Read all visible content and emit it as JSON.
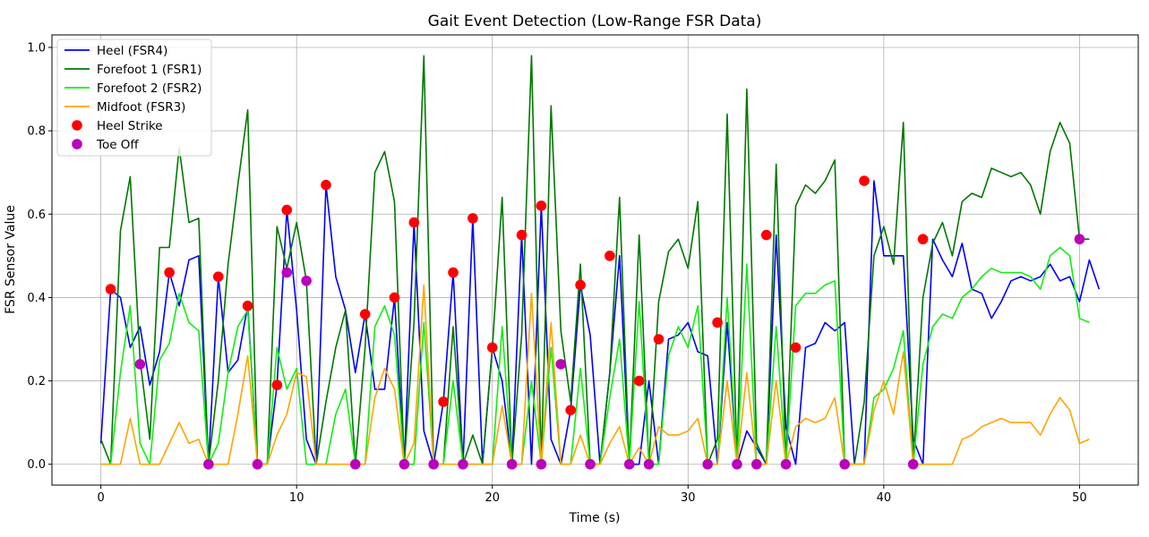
{
  "chart_data": {
    "type": "line",
    "title": "Gait Event Detection (Low-Range FSR Data)",
    "xlabel": "Time (s)",
    "ylabel": "FSR Sensor Value",
    "xlim": [
      -2.5,
      53.0
    ],
    "ylim": [
      -0.05,
      1.03
    ],
    "xticks": [
      0,
      10,
      20,
      30,
      40,
      50
    ],
    "yticks": [
      0.0,
      0.2,
      0.4,
      0.6,
      0.8,
      1.0
    ],
    "xtick_labels": [
      "0",
      "10",
      "20",
      "30",
      "40",
      "50"
    ],
    "ytick_labels": [
      "0.0",
      "0.2",
      "0.4",
      "0.6",
      "0.8",
      "1.0"
    ],
    "grid": true,
    "legend_position": "upper-left",
    "x_step": 0.5,
    "series": [
      {
        "name": "Heel (FSR4)",
        "color": "#0000ff",
        "style": "line",
        "values": [
          0.05,
          0.42,
          0.4,
          0.28,
          0.33,
          0.19,
          0.27,
          0.46,
          0.38,
          0.49,
          0.5,
          0.0,
          0.45,
          0.22,
          0.25,
          0.38,
          0.0,
          0.0,
          0.19,
          0.61,
          0.37,
          0.06,
          0.0,
          0.67,
          0.45,
          0.37,
          0.22,
          0.36,
          0.18,
          0.18,
          0.4,
          0.0,
          0.58,
          0.08,
          0.0,
          0.15,
          0.46,
          0.0,
          0.59,
          0.0,
          0.28,
          0.2,
          0.0,
          0.55,
          0.0,
          0.62,
          0.06,
          0.0,
          0.13,
          0.43,
          0.31,
          0.0,
          0.22,
          0.5,
          0.0,
          0.0,
          0.2,
          0.0,
          0.3,
          0.31,
          0.34,
          0.27,
          0.26,
          0.0,
          0.34,
          0.0,
          0.08,
          0.04,
          0.0,
          0.55,
          0.09,
          0.0,
          0.28,
          0.29,
          0.34,
          0.32,
          0.34,
          0.0,
          0.0,
          0.68,
          0.5,
          0.5,
          0.5,
          0.06,
          0.0,
          0.54,
          0.49,
          0.45,
          0.53,
          0.42,
          0.41,
          0.35,
          0.39,
          0.44,
          0.45,
          0.44,
          0.45,
          0.48,
          0.44,
          0.45,
          0.39,
          0.49,
          0.42
        ]
      },
      {
        "name": "Forefoot 1 (FSR1)",
        "color": "#007700",
        "style": "line",
        "values": [
          0.06,
          0.0,
          0.56,
          0.69,
          0.25,
          0.06,
          0.52,
          0.52,
          0.76,
          0.58,
          0.59,
          0.0,
          0.2,
          0.48,
          0.67,
          0.85,
          0.0,
          0.0,
          0.57,
          0.47,
          0.58,
          0.44,
          0.0,
          0.15,
          0.28,
          0.37,
          0.0,
          0.28,
          0.7,
          0.75,
          0.63,
          0.0,
          0.34,
          0.98,
          0.0,
          0.0,
          0.33,
          0.0,
          0.07,
          0.0,
          0.28,
          0.64,
          0.0,
          0.31,
          0.98,
          0.0,
          0.86,
          0.32,
          0.15,
          0.48,
          0.0,
          0.0,
          0.22,
          0.64,
          0.0,
          0.55,
          0.0,
          0.39,
          0.51,
          0.54,
          0.47,
          0.63,
          0.0,
          0.06,
          0.84,
          0.0,
          0.9,
          0.05,
          0.0,
          0.72,
          0.0,
          0.62,
          0.67,
          0.65,
          0.68,
          0.73,
          0.0,
          0.0,
          0.15,
          0.5,
          0.57,
          0.48,
          0.82,
          0.0,
          0.4,
          0.53,
          0.58,
          0.5,
          0.63,
          0.65,
          0.64,
          0.71,
          0.7,
          0.69,
          0.7,
          0.67,
          0.6,
          0.75,
          0.82,
          0.77,
          0.54,
          0.54
        ]
      },
      {
        "name": "Forefoot 2 (FSR2)",
        "color": "#11ee11",
        "style": "line",
        "values": [
          0.0,
          0.0,
          0.22,
          0.38,
          0.05,
          0.0,
          0.25,
          0.29,
          0.41,
          0.34,
          0.32,
          0.0,
          0.05,
          0.22,
          0.33,
          0.37,
          0.0,
          0.0,
          0.28,
          0.18,
          0.23,
          0.0,
          0.0,
          0.0,
          0.12,
          0.18,
          0.0,
          0.0,
          0.33,
          0.38,
          0.31,
          0.0,
          0.0,
          0.34,
          0.0,
          0.0,
          0.2,
          0.0,
          0.0,
          0.0,
          0.0,
          0.33,
          0.0,
          0.0,
          0.2,
          0.0,
          0.28,
          0.0,
          0.0,
          0.23,
          0.0,
          0.0,
          0.16,
          0.3,
          0.0,
          0.39,
          0.0,
          0.0,
          0.26,
          0.33,
          0.28,
          0.38,
          0.0,
          0.0,
          0.4,
          0.0,
          0.48,
          0.0,
          0.0,
          0.33,
          0.0,
          0.38,
          0.41,
          0.41,
          0.43,
          0.44,
          0.0,
          0.0,
          0.0,
          0.16,
          0.18,
          0.23,
          0.32,
          0.0,
          0.24,
          0.33,
          0.36,
          0.35,
          0.4,
          0.42,
          0.45,
          0.47,
          0.46,
          0.46,
          0.46,
          0.45,
          0.42,
          0.5,
          0.52,
          0.5,
          0.35,
          0.34
        ]
      },
      {
        "name": "Midfoot (FSR3)",
        "color": "#ffa500",
        "style": "line",
        "values": [
          0.0,
          0.0,
          0.0,
          0.11,
          0.0,
          0.0,
          0.0,
          0.05,
          0.1,
          0.05,
          0.06,
          0.0,
          0.0,
          0.0,
          0.12,
          0.26,
          0.0,
          0.0,
          0.07,
          0.12,
          0.22,
          0.21,
          0.0,
          0.0,
          0.0,
          0.0,
          0.0,
          0.0,
          0.16,
          0.23,
          0.18,
          0.0,
          0.05,
          0.43,
          0.0,
          0.0,
          0.0,
          0.0,
          0.0,
          0.0,
          0.0,
          0.14,
          0.0,
          0.0,
          0.41,
          0.0,
          0.34,
          0.0,
          0.0,
          0.07,
          0.0,
          0.0,
          0.05,
          0.09,
          0.0,
          0.04,
          0.0,
          0.09,
          0.07,
          0.07,
          0.08,
          0.11,
          0.0,
          0.0,
          0.2,
          0.0,
          0.22,
          0.0,
          0.0,
          0.2,
          0.0,
          0.09,
          0.11,
          0.1,
          0.11,
          0.16,
          0.0,
          0.0,
          0.0,
          0.13,
          0.2,
          0.12,
          0.27,
          0.0,
          0.0,
          0.0,
          0.0,
          0.0,
          0.06,
          0.07,
          0.09,
          0.1,
          0.11,
          0.1,
          0.1,
          0.1,
          0.07,
          0.12,
          0.16,
          0.13,
          0.05,
          0.06
        ]
      },
      {
        "name": "Heel Strike",
        "color": "#ff0000",
        "style": "marker",
        "points": [
          [
            0.5,
            0.42
          ],
          [
            3.5,
            0.46
          ],
          [
            6.0,
            0.45
          ],
          [
            7.5,
            0.38
          ],
          [
            9.0,
            0.19
          ],
          [
            9.5,
            0.61
          ],
          [
            11.5,
            0.67
          ],
          [
            13.5,
            0.36
          ],
          [
            15.0,
            0.4
          ],
          [
            16.0,
            0.58
          ],
          [
            17.5,
            0.15
          ],
          [
            18.0,
            0.46
          ],
          [
            19.0,
            0.59
          ],
          [
            20.0,
            0.28
          ],
          [
            21.5,
            0.55
          ],
          [
            22.5,
            0.62
          ],
          [
            24.0,
            0.13
          ],
          [
            24.5,
            0.43
          ],
          [
            26.0,
            0.5
          ],
          [
            27.5,
            0.2
          ],
          [
            28.5,
            0.3
          ],
          [
            31.5,
            0.34
          ],
          [
            34.0,
            0.55
          ],
          [
            35.5,
            0.28
          ],
          [
            39.0,
            0.68
          ],
          [
            42.0,
            0.54
          ]
        ]
      },
      {
        "name": "Toe Off",
        "color": "#bb00bb",
        "style": "marker",
        "points": [
          [
            2.0,
            0.24
          ],
          [
            5.5,
            0.0
          ],
          [
            8.0,
            0.0
          ],
          [
            9.5,
            0.46
          ],
          [
            10.5,
            0.44
          ],
          [
            13.0,
            0.0
          ],
          [
            15.5,
            0.0
          ],
          [
            17.0,
            0.0
          ],
          [
            18.5,
            0.0
          ],
          [
            21.0,
            0.0
          ],
          [
            22.5,
            0.0
          ],
          [
            23.5,
            0.24
          ],
          [
            25.0,
            0.0
          ],
          [
            27.0,
            0.0
          ],
          [
            28.0,
            0.0
          ],
          [
            31.0,
            0.0
          ],
          [
            32.5,
            0.0
          ],
          [
            33.5,
            0.0
          ],
          [
            35.0,
            0.0
          ],
          [
            38.0,
            0.0
          ],
          [
            41.5,
            0.0
          ],
          [
            50.0,
            0.54
          ]
        ]
      }
    ]
  }
}
